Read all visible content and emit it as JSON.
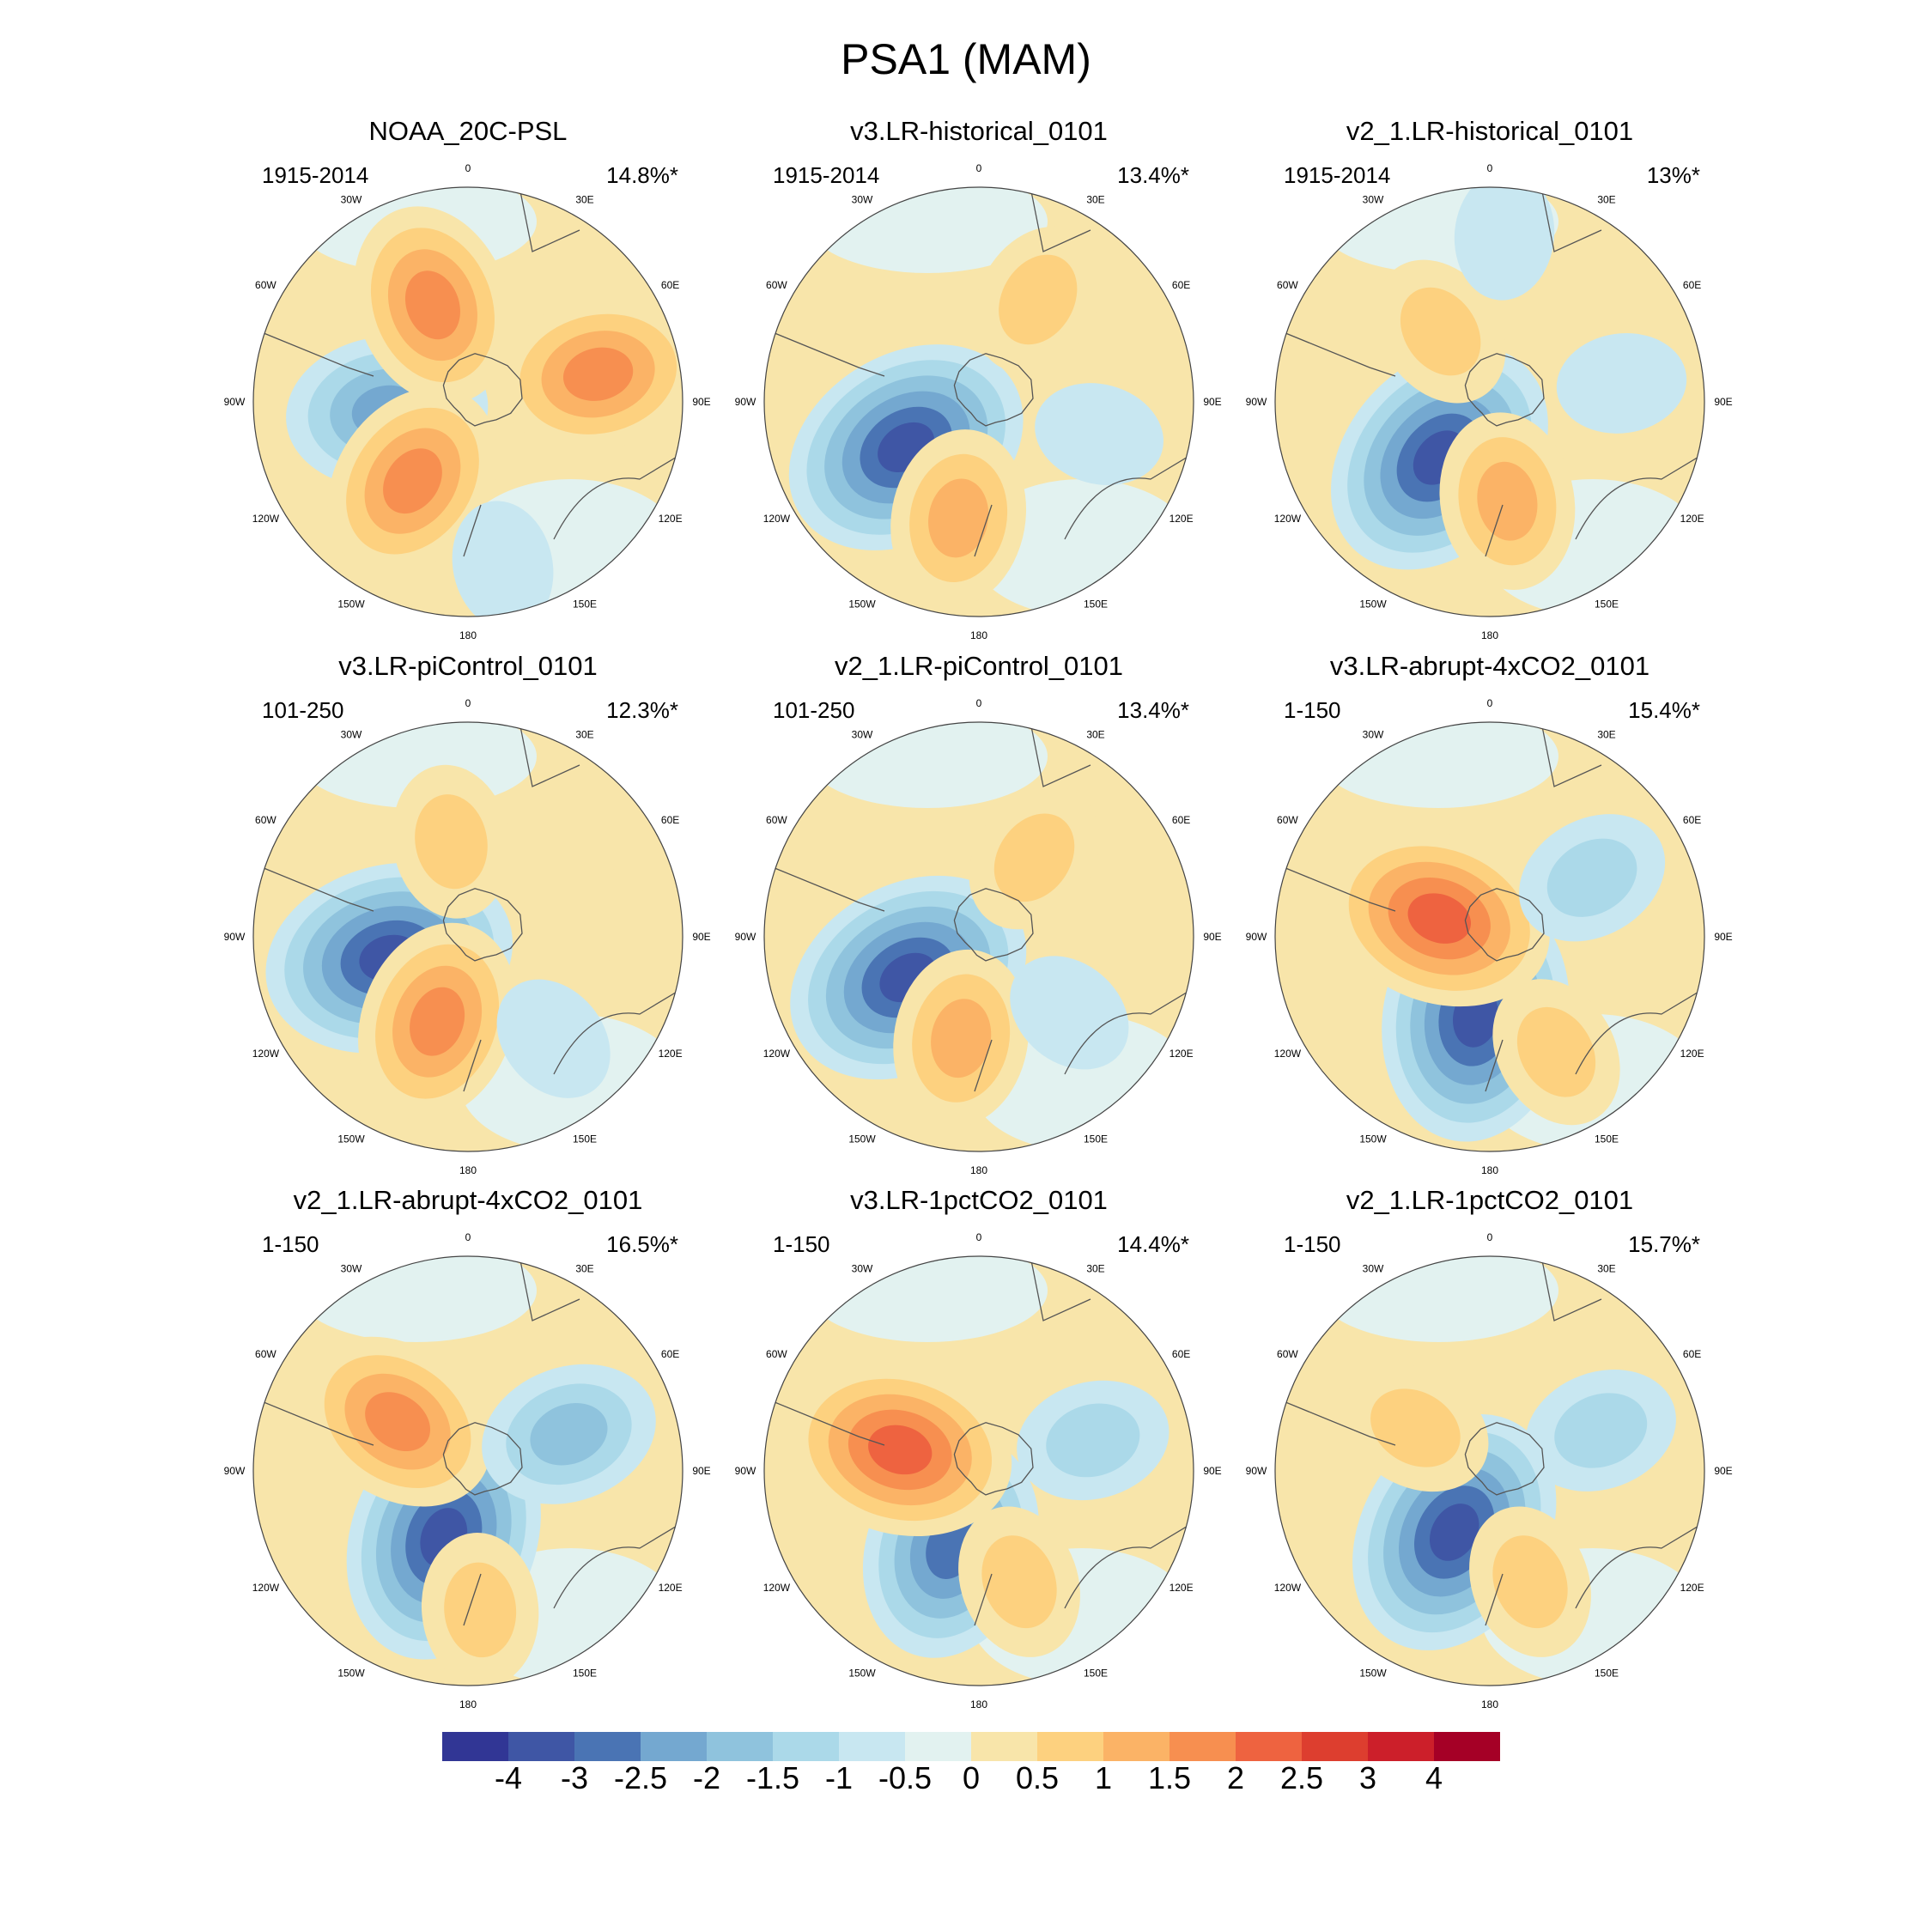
{
  "title": "PSA1 (MAM)",
  "longitude_labels": [
    "0",
    "30E",
    "60E",
    "90E",
    "120E",
    "150E",
    "180",
    "150W",
    "120W",
    "90W",
    "60W",
    "30W"
  ],
  "panels": [
    {
      "title": "NOAA_20C-PSL",
      "period": "1915-2014",
      "variance": "14.8%*",
      "anomalies": [
        {
          "sign": "neg",
          "level": 4,
          "bearing": 263,
          "dist": 0.38
        },
        {
          "sign": "pos",
          "level": 4,
          "bearing": 340,
          "dist": 0.48
        },
        {
          "sign": "pos",
          "level": 4,
          "bearing": 78,
          "dist": 0.62
        },
        {
          "sign": "pos",
          "level": 4,
          "bearing": 215,
          "dist": 0.45
        },
        {
          "sign": "neg",
          "level": 1,
          "bearing": 168,
          "dist": 0.78
        }
      ]
    },
    {
      "title": "v3.LR-historical_0101",
      "period": "1915-2014",
      "variance": "13.4%*",
      "anomalies": [
        {
          "sign": "neg",
          "level": 6,
          "bearing": 238,
          "dist": 0.4
        },
        {
          "sign": "pos",
          "level": 3,
          "bearing": 190,
          "dist": 0.55
        },
        {
          "sign": "pos",
          "level": 2,
          "bearing": 30,
          "dist": 0.55
        },
        {
          "sign": "neg",
          "level": 1,
          "bearing": 105,
          "dist": 0.58
        }
      ]
    },
    {
      "title": "v2_1.LR-historical_0101",
      "period": "1915-2014",
      "variance": "13%*",
      "anomalies": [
        {
          "sign": "neg",
          "level": 6,
          "bearing": 222,
          "dist": 0.35
        },
        {
          "sign": "pos",
          "level": 3,
          "bearing": 170,
          "dist": 0.47
        },
        {
          "sign": "pos",
          "level": 2,
          "bearing": 325,
          "dist": 0.4
        },
        {
          "sign": "neg",
          "level": 1,
          "bearing": 82,
          "dist": 0.62
        },
        {
          "sign": "neg",
          "level": 1,
          "bearing": 5,
          "dist": 0.78
        }
      ]
    },
    {
      "title": "v3.LR-piControl_0101",
      "period": "101-250",
      "variance": "12.3%*",
      "anomalies": [
        {
          "sign": "neg",
          "level": 6,
          "bearing": 255,
          "dist": 0.38
        },
        {
          "sign": "pos",
          "level": 4,
          "bearing": 200,
          "dist": 0.42
        },
        {
          "sign": "pos",
          "level": 2,
          "bearing": 350,
          "dist": 0.45
        },
        {
          "sign": "pos",
          "level": 1,
          "bearing": 80,
          "dist": 0.55
        },
        {
          "sign": "neg",
          "level": 1,
          "bearing": 140,
          "dist": 0.62
        }
      ]
    },
    {
      "title": "v2_1.LR-piControl_0101",
      "period": "101-250",
      "variance": "13.4%*",
      "anomalies": [
        {
          "sign": "neg",
          "level": 6,
          "bearing": 240,
          "dist": 0.38
        },
        {
          "sign": "pos",
          "level": 3,
          "bearing": 190,
          "dist": 0.48
        },
        {
          "sign": "pos",
          "level": 2,
          "bearing": 35,
          "dist": 0.45
        },
        {
          "sign": "neg",
          "level": 1,
          "bearing": 130,
          "dist": 0.55
        }
      ]
    },
    {
      "title": "v3.LR-abrupt-4xCO2_0101",
      "period": "1-150",
      "variance": "15.4%*",
      "anomalies": [
        {
          "sign": "neg",
          "level": 6,
          "bearing": 190,
          "dist": 0.38
        },
        {
          "sign": "pos",
          "level": 5,
          "bearing": 290,
          "dist": 0.25
        },
        {
          "sign": "neg",
          "level": 2,
          "bearing": 60,
          "dist": 0.55
        },
        {
          "sign": "pos",
          "level": 2,
          "bearing": 150,
          "dist": 0.62
        }
      ]
    },
    {
      "title": "v2_1.LR-abrupt-4xCO2_0101",
      "period": "1-150",
      "variance": "16.5%*",
      "anomalies": [
        {
          "sign": "neg",
          "level": 6,
          "bearing": 200,
          "dist": 0.33
        },
        {
          "sign": "pos",
          "level": 4,
          "bearing": 305,
          "dist": 0.4
        },
        {
          "sign": "neg",
          "level": 3,
          "bearing": 70,
          "dist": 0.5
        },
        {
          "sign": "pos",
          "level": 2,
          "bearing": 175,
          "dist": 0.65
        }
      ]
    },
    {
      "title": "v3.LR-1pctCO2_0101",
      "period": "1-150",
      "variance": "14.4%*",
      "anomalies": [
        {
          "sign": "neg",
          "level": 5,
          "bearing": 200,
          "dist": 0.38
        },
        {
          "sign": "pos",
          "level": 5,
          "bearing": 285,
          "dist": 0.38
        },
        {
          "sign": "neg",
          "level": 2,
          "bearing": 75,
          "dist": 0.55
        },
        {
          "sign": "pos",
          "level": 2,
          "bearing": 160,
          "dist": 0.55
        }
      ]
    },
    {
      "title": "v2_1.LR-1pctCO2_0101",
      "period": "1-150",
      "variance": "15.7%*",
      "anomalies": [
        {
          "sign": "neg",
          "level": 6,
          "bearing": 210,
          "dist": 0.33
        },
        {
          "sign": "pos",
          "level": 2,
          "bearing": 300,
          "dist": 0.4
        },
        {
          "sign": "neg",
          "level": 2,
          "bearing": 70,
          "dist": 0.55
        },
        {
          "sign": "pos",
          "level": 2,
          "bearing": 160,
          "dist": 0.55
        }
      ]
    }
  ],
  "colorbar": {
    "labels": [
      "-4",
      "-3",
      "-2.5",
      "-2",
      "-1.5",
      "-1",
      "-0.5",
      "0",
      "0.5",
      "1",
      "1.5",
      "2",
      "2.5",
      "3",
      "4"
    ],
    "colors": [
      "#313695",
      "#3f56a5",
      "#4a74b4",
      "#74a8d0",
      "#8fc3dd",
      "#abd9e9",
      "#c8e7f1",
      "#e2f2f0",
      "#f8e5aa",
      "#fdd17f",
      "#fbb366",
      "#f78f50",
      "#ee6340",
      "#dd3e2f",
      "#cc1f2a",
      "#a50026"
    ]
  }
}
